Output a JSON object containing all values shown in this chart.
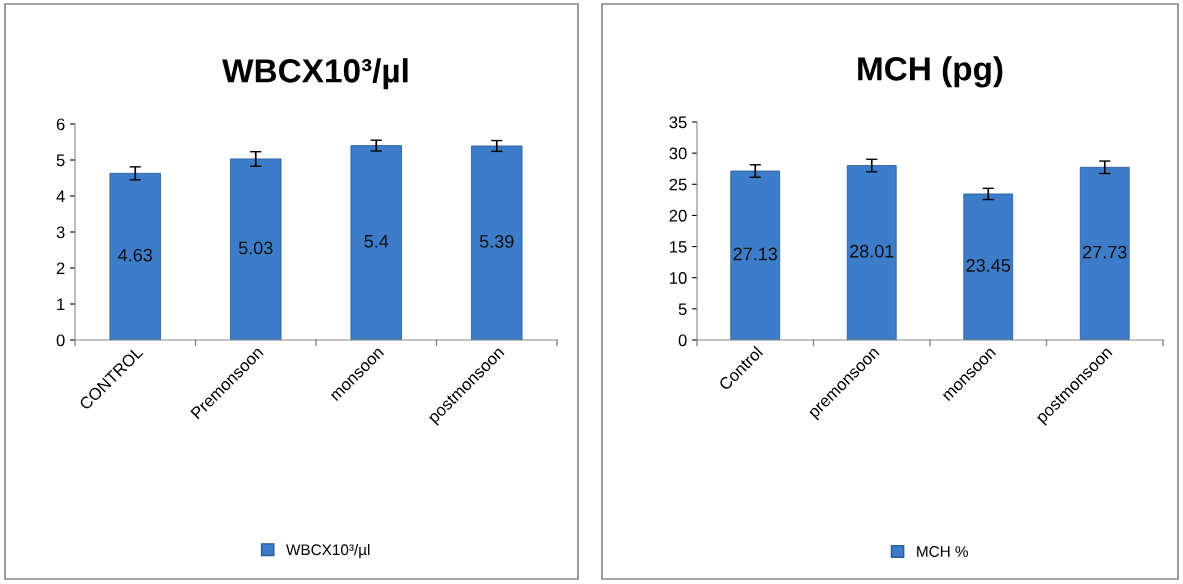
{
  "chart_data": [
    {
      "type": "bar",
      "title": "WBCX10³/µl",
      "categories": [
        "CONTROL",
        "Premonsoon",
        "monsoon",
        "postmonsoon"
      ],
      "series": [
        {
          "name": "WBCX10³/µl",
          "color": "#3d7cc9",
          "values": [
            4.63,
            5.03,
            5.4,
            5.39
          ],
          "errors": [
            0.18,
            0.2,
            0.15,
            0.15
          ]
        }
      ],
      "ylim": [
        0,
        6
      ],
      "yticks": [
        0,
        1,
        2,
        3,
        4,
        5,
        6
      ],
      "data_labels": true,
      "legend": "bottom",
      "grid": false
    },
    {
      "type": "bar",
      "title": "MCH (pg)",
      "categories": [
        "Control",
        "premonsoon",
        "monsoon",
        "postmonsoon"
      ],
      "series": [
        {
          "name": "MCH %",
          "color": "#3d7cc9",
          "values": [
            27.13,
            28.01,
            23.45,
            27.73
          ],
          "errors": [
            1.0,
            1.0,
            0.9,
            1.0
          ]
        }
      ],
      "ylim": [
        0,
        35
      ],
      "yticks": [
        0,
        5,
        10,
        15,
        20,
        25,
        30,
        35
      ],
      "data_labels": true,
      "legend": "bottom",
      "grid": false
    }
  ]
}
